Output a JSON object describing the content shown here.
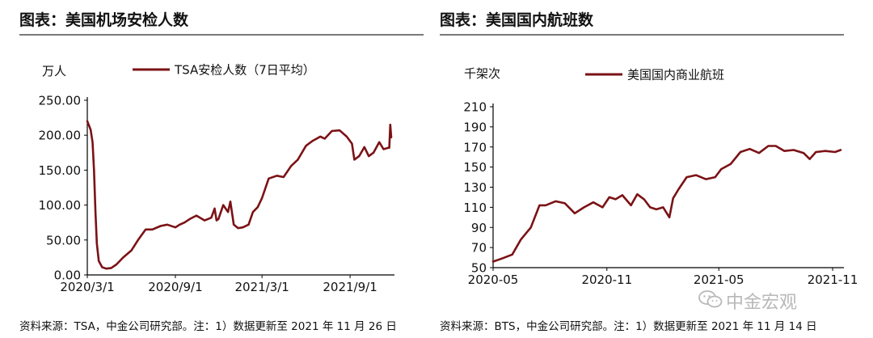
{
  "panels": {
    "left": {
      "title": "图表：美国机场安检人数",
      "source": "资料来源：TSA，中金公司研究部。注：1）数据更新至 2021 年 11 月 26 日"
    },
    "right": {
      "title": "图表：美国国内航班数",
      "source": "资料来源：BTS，中金公司研究部。注：1）数据更新至 2021 年 11 月 14 日"
    }
  },
  "watermark": {
    "text": "中金宏观",
    "icon": "wechat-icon"
  },
  "colors": {
    "series": "#7b1216",
    "axis": "#000000",
    "rule": "#7a7a7a"
  },
  "chart_data": [
    {
      "type": "line",
      "unit_label": "万人",
      "y_tick_labels": [
        "0.00",
        "50.00",
        "100.00",
        "150.00",
        "200.00",
        "250.00"
      ],
      "y_ticks": [
        0,
        50,
        100,
        150,
        200,
        250
      ],
      "ylim": [
        0,
        250
      ],
      "x_tick_labels": [
        "2020/3/1",
        "2020/9/1",
        "2021/3/1",
        "2021/9/1"
      ],
      "x_ticks": [
        "2020-03-01",
        "2020-09-01",
        "2021-03-01",
        "2021-09-01"
      ],
      "xlim": [
        "2020-03-01",
        "2021-11-26"
      ],
      "grid": false,
      "legend_position": "top",
      "series": [
        {
          "name": "TSA安检人数（7日平均）",
          "x": [
            "2020-03-01",
            "2020-03-08",
            "2020-03-12",
            "2020-03-15",
            "2020-03-18",
            "2020-03-21",
            "2020-03-25",
            "2020-04-01",
            "2020-04-10",
            "2020-04-20",
            "2020-05-01",
            "2020-05-15",
            "2020-06-01",
            "2020-06-15",
            "2020-07-01",
            "2020-07-15",
            "2020-08-01",
            "2020-08-15",
            "2020-09-01",
            "2020-09-10",
            "2020-09-20",
            "2020-10-01",
            "2020-10-15",
            "2020-11-01",
            "2020-11-15",
            "2020-11-22",
            "2020-11-26",
            "2020-11-30",
            "2020-12-10",
            "2020-12-20",
            "2020-12-25",
            "2021-01-01",
            "2021-01-10",
            "2021-01-20",
            "2021-02-01",
            "2021-02-10",
            "2021-02-20",
            "2021-03-01",
            "2021-03-15",
            "2021-04-01",
            "2021-04-15",
            "2021-05-01",
            "2021-05-15",
            "2021-06-01",
            "2021-06-15",
            "2021-07-01",
            "2021-07-10",
            "2021-07-25",
            "2021-08-10",
            "2021-08-25",
            "2021-09-05",
            "2021-09-10",
            "2021-09-20",
            "2021-10-01",
            "2021-10-10",
            "2021-10-20",
            "2021-11-01",
            "2021-11-10",
            "2021-11-20",
            "2021-11-22",
            "2021-11-24",
            "2021-11-26"
          ],
          "values": [
            220,
            208,
            190,
            150,
            90,
            45,
            20,
            11,
            9,
            10,
            15,
            25,
            35,
            50,
            65,
            65,
            70,
            72,
            68,
            72,
            75,
            80,
            85,
            78,
            82,
            95,
            78,
            80,
            100,
            90,
            105,
            72,
            67,
            68,
            72,
            90,
            97,
            110,
            138,
            142,
            140,
            156,
            165,
            185,
            192,
            198,
            195,
            206,
            207,
            198,
            188,
            165,
            170,
            183,
            170,
            175,
            190,
            180,
            182,
            182,
            215,
            197
          ]
        }
      ]
    },
    {
      "type": "line",
      "unit_label": "千架次",
      "y_tick_labels": [
        "50",
        "70",
        "90",
        "110",
        "130",
        "150",
        "170",
        "190",
        "210"
      ],
      "y_ticks": [
        50,
        70,
        90,
        110,
        130,
        150,
        170,
        190,
        210
      ],
      "ylim": [
        50,
        210
      ],
      "x_tick_labels": [
        "2020-05",
        "2020-11",
        "2021-05",
        "2021-11"
      ],
      "x_ticks": [
        "2020-05-01",
        "2020-11-01",
        "2021-05-01",
        "2021-11-01"
      ],
      "xlim": [
        "2020-05-01",
        "2021-11-14"
      ],
      "grid": false,
      "legend_position": "top",
      "series": [
        {
          "name": "美国国内商业航班",
          "x": [
            "2020-05-01",
            "2020-05-15",
            "2020-06-01",
            "2020-06-15",
            "2020-07-01",
            "2020-07-15",
            "2020-07-25",
            "2020-08-10",
            "2020-08-25",
            "2020-09-10",
            "2020-09-25",
            "2020-10-10",
            "2020-10-25",
            "2020-11-05",
            "2020-11-15",
            "2020-11-26",
            "2020-12-10",
            "2020-12-20",
            "2020-12-31",
            "2021-01-10",
            "2021-01-20",
            "2021-01-31",
            "2021-02-10",
            "2021-02-16",
            "2021-02-25",
            "2021-03-10",
            "2021-03-25",
            "2021-04-10",
            "2021-04-25",
            "2021-05-05",
            "2021-05-20",
            "2021-06-05",
            "2021-06-20",
            "2021-07-05",
            "2021-07-20",
            "2021-08-01",
            "2021-08-15",
            "2021-08-30",
            "2021-09-15",
            "2021-09-25",
            "2021-10-05",
            "2021-10-20",
            "2021-11-05",
            "2021-11-14"
          ],
          "values": [
            56,
            59,
            63,
            78,
            90,
            112,
            112,
            116,
            114,
            104,
            110,
            115,
            110,
            120,
            118,
            122,
            112,
            123,
            118,
            110,
            108,
            110,
            100,
            119,
            128,
            140,
            142,
            138,
            140,
            148,
            153,
            165,
            168,
            164,
            171,
            171,
            166,
            167,
            164,
            158,
            165,
            166,
            165,
            167
          ]
        }
      ]
    }
  ]
}
